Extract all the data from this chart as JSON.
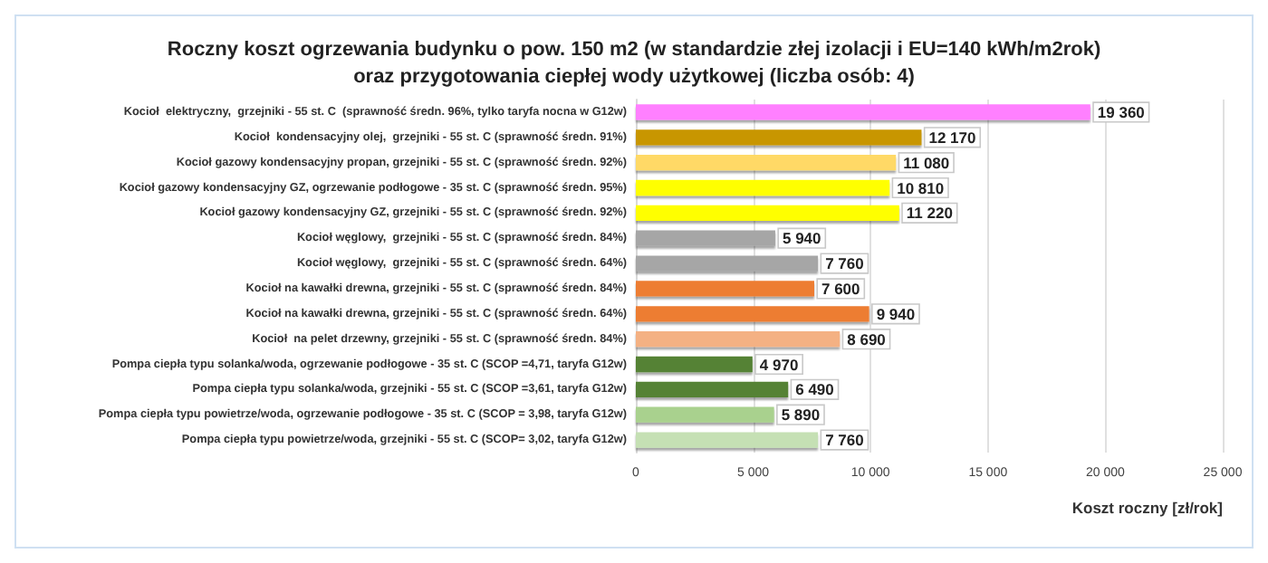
{
  "chart_data": {
    "type": "bar",
    "orientation": "horizontal",
    "title": "Roczny koszt ogrzewania budynku o pow. 150 m2 (w standardzie złej izolacji i EU=140 kWh/m2rok)\noraz przygotowania ciepłej wody użytkowej (liczba osób: 4)",
    "xlabel": "Koszt roczny [zł/rok]",
    "categories": [
      "Kocioł  elektryczny,  grzejniki - 55 st. C  (sprawność średn. 96%, tylko taryfa nocna w G12w)",
      "Kocioł  kondensacyjny olej,  grzejniki - 55 st. C (sprawność średn. 91%)",
      "Kocioł gazowy kondensacyjny propan, grzejniki - 55 st. C (sprawność średn. 92%)",
      "Kocioł gazowy kondensacyjny GZ, ogrzewanie podłogowe - 35 st. C (sprawność średn. 95%)",
      "Kocioł gazowy kondensacyjny GZ, grzejniki - 55 st. C (sprawność średn. 92%)",
      "Kocioł węglowy,  grzejniki - 55 st. C (sprawność średn. 84%)",
      "Kocioł węglowy,  grzejniki - 55 st. C (sprawność średn. 64%)",
      "Kocioł na kawałki drewna, grzejniki - 55 st. C (sprawność średn. 84%)",
      "Kocioł na kawałki drewna, grzejniki - 55 st. C (sprawność średn. 64%)",
      "Kocioł  na pelet drzewny, grzejniki - 55 st. C (sprawność średn. 84%)",
      "Pompa ciepła typu solanka/woda, ogrzewanie podłogowe - 35 st. C (SCOP =4,71, taryfa G12w)",
      "Pompa ciepła typu solanka/woda, grzejniki - 55 st. C (SCOP =3,61, taryfa G12w)",
      "Pompa ciepła typu powietrze/woda, ogrzewanie podłogowe - 35 st. C (SCOP = 3,98, taryfa G12w)",
      "Pompa ciepła typu powietrze/woda, grzejniki - 55 st. C (SCOP= 3,02, taryfa G12w)"
    ],
    "values": [
      19360,
      12170,
      11080,
      10810,
      11220,
      5940,
      7760,
      7600,
      9940,
      8690,
      4970,
      6490,
      5890,
      7760
    ],
    "value_labels": [
      "19 360",
      "12 170",
      "11 080",
      "10 810",
      "11 220",
      "5 940",
      "7 760",
      "7 600",
      "9 940",
      "8 690",
      "4 970",
      "6 490",
      "5 890",
      "7 760"
    ],
    "colors": [
      "#ff80ff",
      "#c89600",
      "#ffd966",
      "#ffff00",
      "#ffff00",
      "#a6a6a6",
      "#a6a6a6",
      "#ed7d31",
      "#ed7d31",
      "#f4b183",
      "#548235",
      "#548235",
      "#a9d18e",
      "#c5e0b4"
    ],
    "xlim": [
      0,
      25000
    ],
    "xticks": [
      {
        "value": 0,
        "label": "0"
      },
      {
        "value": 5000,
        "label": "5 000"
      },
      {
        "value": 10000,
        "label": "10 000"
      },
      {
        "value": 15000,
        "label": "15 000"
      },
      {
        "value": 20000,
        "label": "20 000"
      },
      {
        "value": 25000,
        "label": "25 000"
      }
    ],
    "grid": "x"
  }
}
